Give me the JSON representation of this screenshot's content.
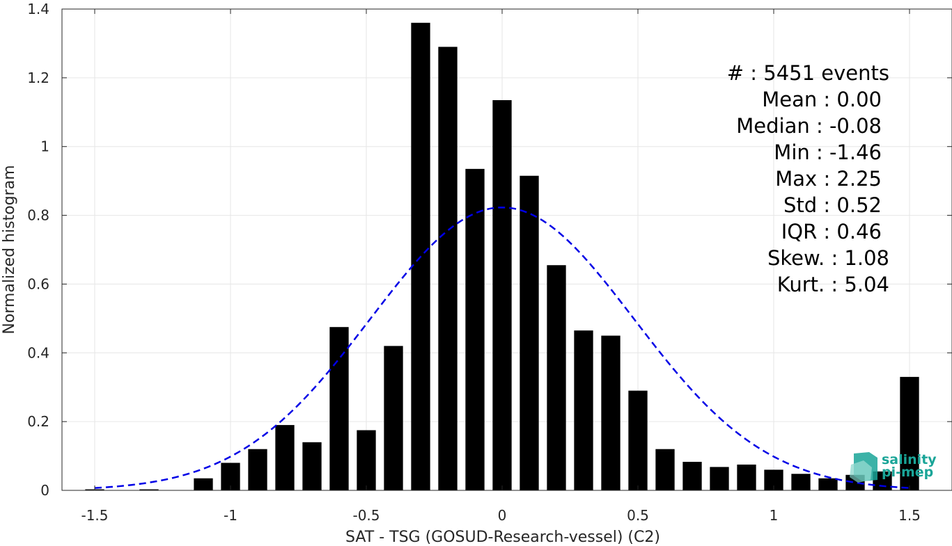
{
  "colors": {
    "bars": "#000000",
    "fit_curve": "#0000e6",
    "grid": "#e6e6e6",
    "axes": "#262626",
    "logo": "#1aa598"
  },
  "chart_data": {
    "type": "bar",
    "xlabel": "SAT - TSG (GOSUD-Research-vessel) (C2)",
    "ylabel": "Normalized histogram",
    "xlim": [
      -1.6,
      1.6
    ],
    "ylim": [
      0,
      1.4
    ],
    "xticks": [
      "-1.5",
      "-1",
      "-0.5",
      "0",
      "0.5",
      "1",
      "1.5"
    ],
    "yticks": [
      "0",
      "0.2",
      "0.4",
      "0.6",
      "0.8",
      "1",
      "1.2",
      "1.4"
    ],
    "grid": true,
    "bin_width": 0.1,
    "bar_width": 0.07,
    "bins": [
      {
        "x": -1.5,
        "y": 0.003
      },
      {
        "x": -1.4,
        "y": 0.0
      },
      {
        "x": -1.3,
        "y": 0.003
      },
      {
        "x": -1.2,
        "y": 0.0
      },
      {
        "x": -1.1,
        "y": 0.035
      },
      {
        "x": -1.0,
        "y": 0.08
      },
      {
        "x": -0.9,
        "y": 0.12
      },
      {
        "x": -0.8,
        "y": 0.19
      },
      {
        "x": -0.7,
        "y": 0.14
      },
      {
        "x": -0.6,
        "y": 0.475
      },
      {
        "x": -0.5,
        "y": 0.175
      },
      {
        "x": -0.4,
        "y": 0.42
      },
      {
        "x": -0.3,
        "y": 1.36
      },
      {
        "x": -0.2,
        "y": 1.29
      },
      {
        "x": -0.1,
        "y": 0.935
      },
      {
        "x": 0.0,
        "y": 1.135
      },
      {
        "x": 0.1,
        "y": 0.915
      },
      {
        "x": 0.2,
        "y": 0.655
      },
      {
        "x": 0.3,
        "y": 0.465
      },
      {
        "x": 0.4,
        "y": 0.45
      },
      {
        "x": 0.5,
        "y": 0.29
      },
      {
        "x": 0.6,
        "y": 0.12
      },
      {
        "x": 0.7,
        "y": 0.083
      },
      {
        "x": 0.8,
        "y": 0.068
      },
      {
        "x": 0.9,
        "y": 0.075
      },
      {
        "x": 1.0,
        "y": 0.06
      },
      {
        "x": 1.1,
        "y": 0.048
      },
      {
        "x": 1.2,
        "y": 0.035
      },
      {
        "x": 1.3,
        "y": 0.045
      },
      {
        "x": 1.4,
        "y": 0.055
      },
      {
        "x": 1.5,
        "y": 0.33
      }
    ],
    "fit_curve": {
      "type": "gaussian",
      "style": "dashed",
      "peak": 0.823,
      "mean": 0.0,
      "std": 0.485,
      "x_range": [
        -1.5,
        1.5
      ]
    },
    "stats": [
      {
        "label": "#  : 5451 events"
      },
      {
        "label": "Mean : 0.00"
      },
      {
        "label": "Median : -0.08"
      },
      {
        "label": "Min : -1.46"
      },
      {
        "label": "Max : 2.25"
      },
      {
        "label": "Std : 0.52"
      },
      {
        "label": "IQR : 0.46"
      },
      {
        "label": "Skew. : 1.08"
      },
      {
        "label": "Kurt. : 5.04"
      }
    ]
  },
  "logo": {
    "line1": "salinity",
    "line2": "pi-mep"
  }
}
